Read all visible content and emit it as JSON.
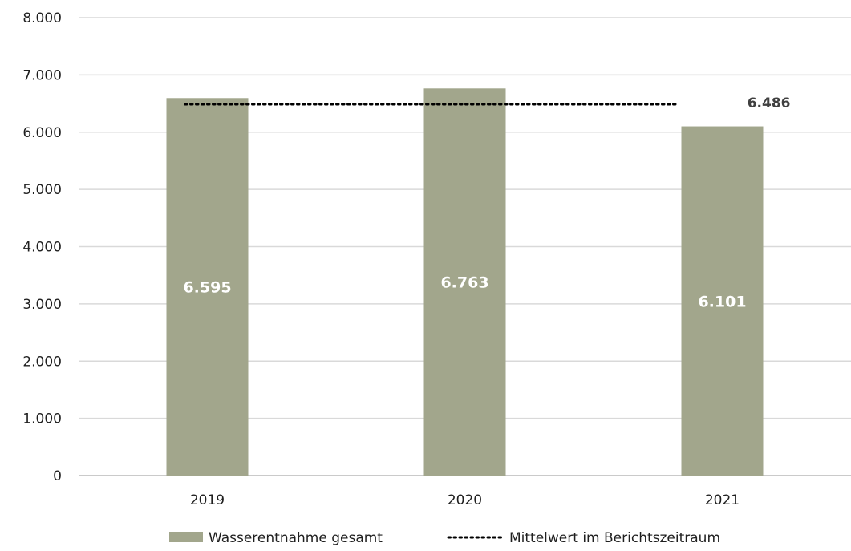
{
  "chart_data": {
    "type": "bar",
    "categories": [
      "2019",
      "2020",
      "2021"
    ],
    "series": [
      {
        "name": "Wasserentnahme gesamt",
        "values": [
          6595,
          6763,
          6101
        ],
        "labels": [
          "6.595",
          "6.763",
          "6.101"
        ],
        "color": "#a2a68c"
      }
    ],
    "reference_line": {
      "name": "Mittelwert im Berichtszeitraum",
      "value": 6486,
      "label": "6.486",
      "style": "dotted",
      "color": "#000000"
    },
    "yticks": [
      0,
      1000,
      2000,
      3000,
      4000,
      5000,
      6000,
      7000,
      8000
    ],
    "ytick_labels": [
      "0",
      "1.000",
      "2.000",
      "3.000",
      "4.000",
      "5.000",
      "6.000",
      "7.000",
      "8.000"
    ],
    "ylim": [
      0,
      8000
    ],
    "grid": true,
    "gridline_color": "#d9d9d9",
    "legend_position": "bottom",
    "title": "",
    "xlabel": "",
    "ylabel": ""
  }
}
